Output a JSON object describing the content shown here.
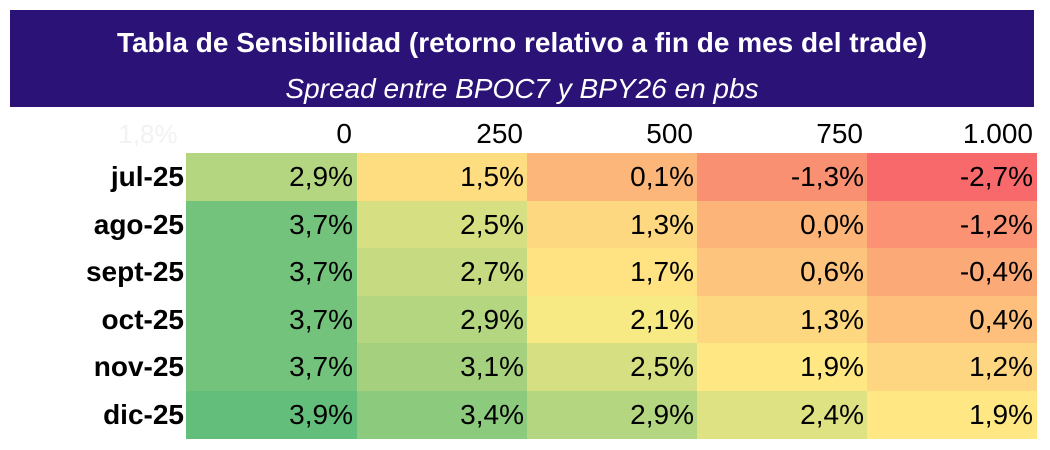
{
  "title": "Tabla de Sensibilidad (retorno relativo a fin de mes del trade)",
  "subtitle": "Spread entre BPOC7 y BPY26 en pbs",
  "colors": {
    "banner": "#2a1277",
    "low": "#f8696b",
    "mid": "#ffeb84",
    "high": "#63be7b"
  },
  "chart_data": {
    "type": "heatmap",
    "corner_label": "1,8%",
    "columns": [
      "0",
      "250",
      "500",
      "750",
      "1.000"
    ],
    "rows": [
      "jul-25",
      "ago-25",
      "sept-25",
      "oct-25",
      "nov-25",
      "dic-25"
    ],
    "values": [
      [
        2.9,
        1.5,
        0.1,
        -1.3,
        -2.7
      ],
      [
        3.7,
        2.5,
        1.3,
        0.0,
        -1.2
      ],
      [
        3.7,
        2.7,
        1.7,
        0.6,
        -0.4
      ],
      [
        3.7,
        2.9,
        2.1,
        1.3,
        0.4
      ],
      [
        3.7,
        3.1,
        2.5,
        1.9,
        1.2
      ],
      [
        3.9,
        3.4,
        2.9,
        2.4,
        1.9
      ]
    ],
    "value_labels": [
      [
        "2,9%",
        "1,5%",
        "0,1%",
        "-1,3%",
        "-2,7%"
      ],
      [
        "3,7%",
        "2,5%",
        "1,3%",
        "0,0%",
        "-1,2%"
      ],
      [
        "3,7%",
        "2,7%",
        "1,7%",
        "0,6%",
        "-0,4%"
      ],
      [
        "3,7%",
        "2,9%",
        "2,1%",
        "1,3%",
        "0,4%"
      ],
      [
        "3,7%",
        "3,1%",
        "2,5%",
        "1,9%",
        "1,2%"
      ],
      [
        "3,9%",
        "3,4%",
        "2,9%",
        "2,4%",
        "1,9%"
      ]
    ]
  }
}
